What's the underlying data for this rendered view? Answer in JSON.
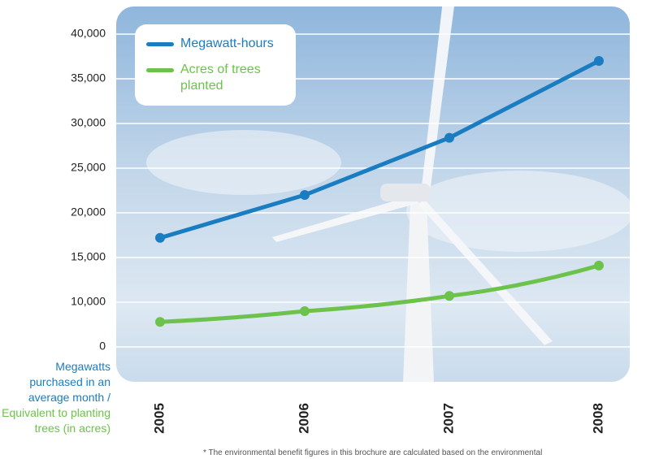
{
  "chart_data": {
    "type": "line",
    "categories": [
      "2005",
      "2006",
      "2007",
      "2008"
    ],
    "series": [
      {
        "name": "Megawatt-hours",
        "color": "#1a7cc1",
        "values": [
          17200,
          22000,
          28400,
          37000
        ]
      },
      {
        "name": "Acres of trees planted",
        "color": "#6cc24a",
        "values": [
          5600,
          8000,
          10700,
          14100
        ]
      }
    ],
    "ylim": [
      0,
      40000
    ],
    "yticks": [
      0,
      {
        "value": 10000,
        "label": "10,000"
      },
      {
        "value": 15000,
        "label": "15,000"
      },
      {
        "value": 20000,
        "label": "20,000"
      },
      {
        "value": 25000,
        "label": "25,000"
      },
      {
        "value": 30000,
        "label": "30,000"
      },
      {
        "value": 35000,
        "label": "35,000"
      },
      {
        "value": 40000,
        "label": "40,000"
      }
    ],
    "grid": true,
    "ylabel": {
      "primary": "Megawatts purchased in an average month /",
      "secondary": "Equivalent to planting trees (in acres)"
    },
    "footnote": "* The environmental benefit figures in this brochure are calculated based on the environmental"
  }
}
